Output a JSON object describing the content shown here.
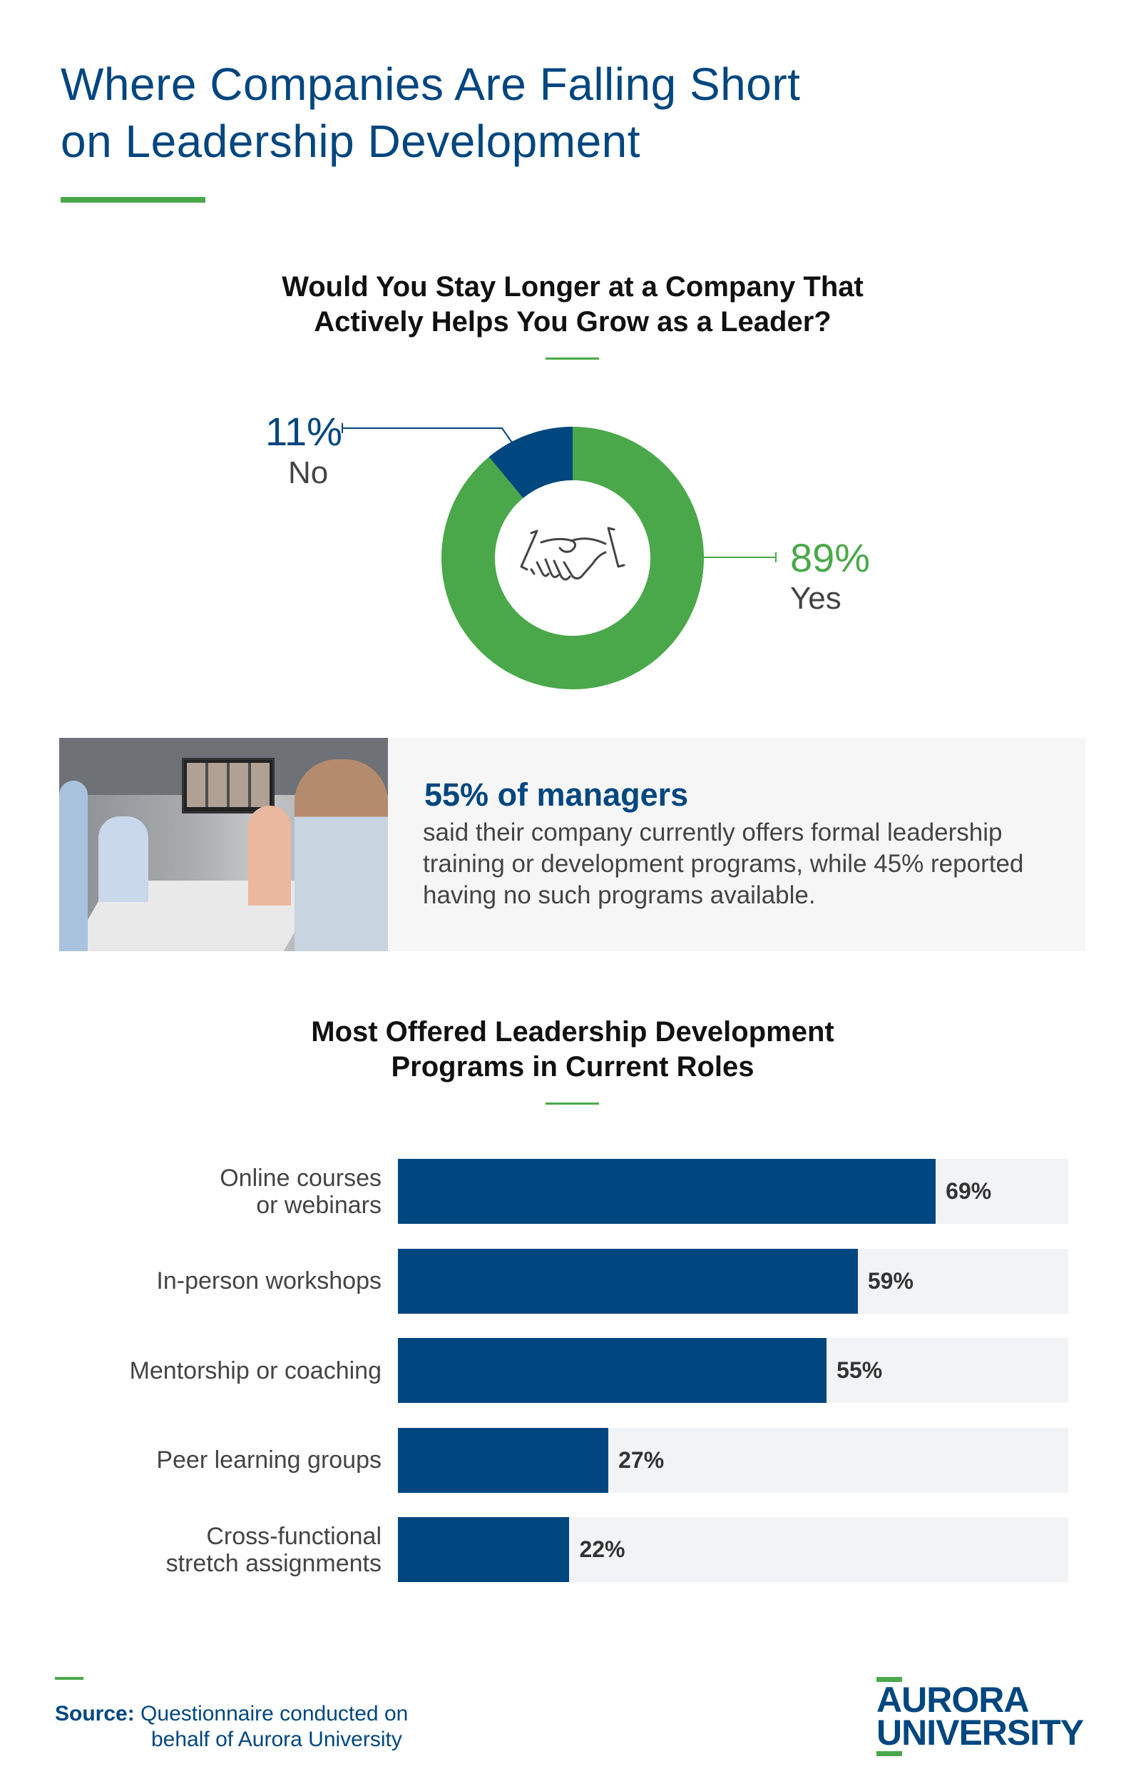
{
  "header": {
    "title_line1": "Where Companies Are Falling Short",
    "title_line2": "on Leadership Development"
  },
  "donut_section": {
    "title_line1": "Would You Stay Longer at a Company That",
    "title_line2": "Actively Helps You Grow as a Leader?",
    "icon": "handshake-icon"
  },
  "stat_callout": {
    "headline": "55% of managers",
    "body": "said their company currently offers formal leadership training or development programs, while 45% reported having no such programs available.",
    "image": "photo of meeting room with video conference screen"
  },
  "bar_section": {
    "title_line1": "Most Offered Leadership Development",
    "title_line2": "Programs in Current Roles"
  },
  "chart_data": [
    {
      "type": "pie",
      "variant": "donut",
      "slices": [
        {
          "label": "Yes",
          "value": 89,
          "value_label": "89%",
          "color": "#4aa84a"
        },
        {
          "label": "No",
          "value": 11,
          "value_label": "11%",
          "color": "#00467f"
        }
      ]
    },
    {
      "type": "bar",
      "orientation": "horizontal",
      "categories": [
        [
          "Online courses",
          "or webinars"
        ],
        [
          "In-person workshops"
        ],
        [
          "Mentorship or coaching"
        ],
        [
          "Peer learning groups"
        ],
        [
          "Cross-functional",
          "stretch assignments"
        ]
      ],
      "values": [
        69,
        59,
        55,
        27,
        22
      ],
      "value_labels": [
        "69%",
        "59%",
        "55%",
        "27%",
        "22%"
      ],
      "xlim": [
        0,
        86
      ],
      "bar_color": "#00467f",
      "track_color": "#f2f3f5"
    }
  ],
  "footer": {
    "source_label": "Source:",
    "source_line1": "Questionnaire conducted on",
    "source_line2": "behalf of Aurora University",
    "logo_line1": "AURORA",
    "logo_line2": "UNIVERSITY"
  },
  "colors": {
    "navy": "#00467f",
    "green": "#4aa84a"
  }
}
